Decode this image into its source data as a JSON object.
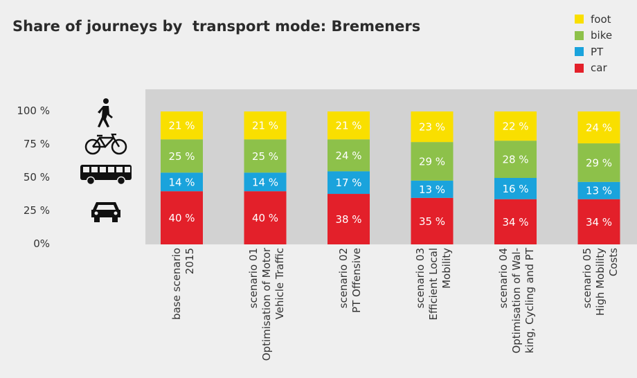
{
  "title": "Share of journeys by  transport mode: Bremeners",
  "icons": [
    "pedestrian-icon",
    "bicycle-icon",
    "bus-icon",
    "car-icon"
  ],
  "chart_data": {
    "type": "bar",
    "stacked": true,
    "title": "Share of journeys by  transport mode: Bremeners",
    "categories": [
      [
        "base scenario",
        "2015"
      ],
      [
        "scenario 01",
        "Optimisation of Motor",
        "Vehicle Traffic"
      ],
      [
        "scenario 02",
        "PT Offensive"
      ],
      [
        "scenario 03",
        "Efficient Local",
        "Mobility"
      ],
      [
        "scenario 04",
        "Optimisation of Wal-",
        "king, Cycling and PT"
      ],
      [
        "scenario 05",
        "High Mobility",
        "Costs"
      ]
    ],
    "series": [
      {
        "name": "car",
        "color": "#e3202a",
        "values": [
          40,
          40,
          38,
          35,
          34,
          34
        ],
        "labels": [
          "40 %",
          "40 %",
          "38 %",
          "35 %",
          "34 %",
          "34 %"
        ]
      },
      {
        "name": "PT",
        "color": "#1aa3dc",
        "values": [
          14,
          14,
          17,
          13,
          16,
          13
        ],
        "labels": [
          "14 %",
          "14 %",
          "17 %",
          "13 %",
          "16 %",
          "13 %"
        ]
      },
      {
        "name": "bike",
        "color": "#8dc14a",
        "values": [
          25,
          25,
          24,
          29,
          28,
          29
        ],
        "labels": [
          "25 %",
          "25 %",
          "24 %",
          "29 %",
          "28 %",
          "29 %"
        ]
      },
      {
        "name": "foot",
        "color": "#f9df00",
        "values": [
          21,
          21,
          21,
          23,
          22,
          24
        ],
        "labels": [
          "21 %",
          "21 %",
          "21 %",
          "23 %",
          "22 %",
          "24 %"
        ]
      }
    ],
    "legend_order": [
      "foot",
      "bike",
      "PT",
      "car"
    ],
    "legend_position": "top-right",
    "yticks": [
      "0%",
      "25 %",
      "50 %",
      "75 %",
      "100 %"
    ],
    "ylim": [
      0,
      100
    ],
    "grid": false
  }
}
